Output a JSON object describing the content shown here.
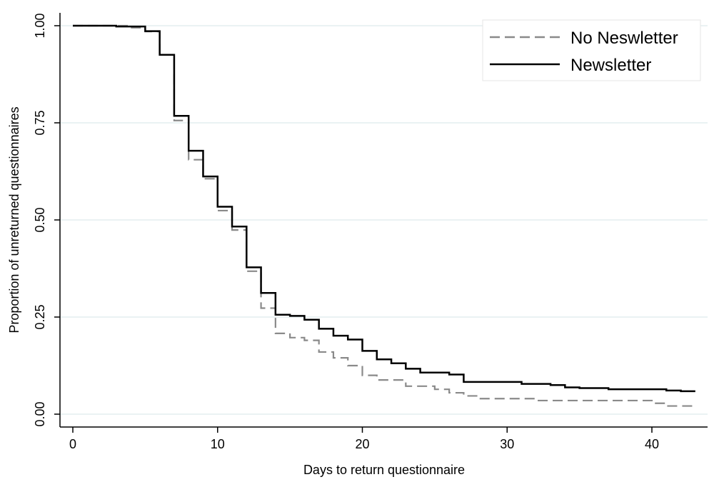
{
  "chart_data": {
    "type": "line",
    "title": "",
    "xlabel": "Days to return questionnaire",
    "ylabel": "Proportion of unreturned questionnaires",
    "xlim": [
      0,
      43
    ],
    "ylim": [
      0,
      1
    ],
    "x_ticks": [
      0,
      10,
      20,
      30,
      40
    ],
    "x_tick_labels": [
      "0",
      "10",
      "20",
      "30",
      "40"
    ],
    "y_ticks": [
      0,
      0.25,
      0.5,
      0.75,
      1
    ],
    "y_tick_labels": [
      "0.00",
      "0.25",
      "0.50",
      "0.75",
      "1.00"
    ],
    "grid": "horizontal",
    "legend_position": "top-right",
    "step": true,
    "series": [
      {
        "name": "No Neswletter",
        "color": "#8a8a8a",
        "dash": "dashed",
        "points": [
          [
            0,
            1.0
          ],
          [
            4,
            0.995
          ],
          [
            5,
            0.985
          ],
          [
            6,
            0.925
          ],
          [
            7,
            0.756
          ],
          [
            8,
            0.655
          ],
          [
            9,
            0.606
          ],
          [
            10,
            0.524
          ],
          [
            11,
            0.474
          ],
          [
            12,
            0.368
          ],
          [
            13,
            0.273
          ],
          [
            14,
            0.208
          ],
          [
            15,
            0.197
          ],
          [
            16,
            0.19
          ],
          [
            17,
            0.16
          ],
          [
            18,
            0.145
          ],
          [
            19,
            0.125
          ],
          [
            20,
            0.1
          ],
          [
            21,
            0.088
          ],
          [
            23,
            0.072
          ],
          [
            25,
            0.064
          ],
          [
            26,
            0.055
          ],
          [
            27,
            0.047
          ],
          [
            28,
            0.04
          ],
          [
            32,
            0.035
          ],
          [
            40,
            0.028
          ],
          [
            41,
            0.021
          ],
          [
            43,
            0.021
          ]
        ]
      },
      {
        "name": "Newsletter",
        "color": "#000000",
        "dash": "solid",
        "points": [
          [
            0,
            1.0
          ],
          [
            3,
            0.998
          ],
          [
            5,
            0.986
          ],
          [
            6,
            0.925
          ],
          [
            7,
            0.768
          ],
          [
            8,
            0.678
          ],
          [
            9,
            0.612
          ],
          [
            10,
            0.534
          ],
          [
            11,
            0.483
          ],
          [
            12,
            0.378
          ],
          [
            13,
            0.312
          ],
          [
            14,
            0.256
          ],
          [
            15,
            0.253
          ],
          [
            16,
            0.243
          ],
          [
            17,
            0.22
          ],
          [
            18,
            0.202
          ],
          [
            19,
            0.192
          ],
          [
            20,
            0.163
          ],
          [
            21,
            0.141
          ],
          [
            22,
            0.131
          ],
          [
            23,
            0.117
          ],
          [
            24,
            0.107
          ],
          [
            26,
            0.102
          ],
          [
            27,
            0.083
          ],
          [
            31,
            0.078
          ],
          [
            33,
            0.075
          ],
          [
            34,
            0.069
          ],
          [
            35,
            0.067
          ],
          [
            37,
            0.064
          ],
          [
            41,
            0.061
          ],
          [
            42,
            0.059
          ],
          [
            43,
            0.059
          ]
        ]
      }
    ]
  }
}
